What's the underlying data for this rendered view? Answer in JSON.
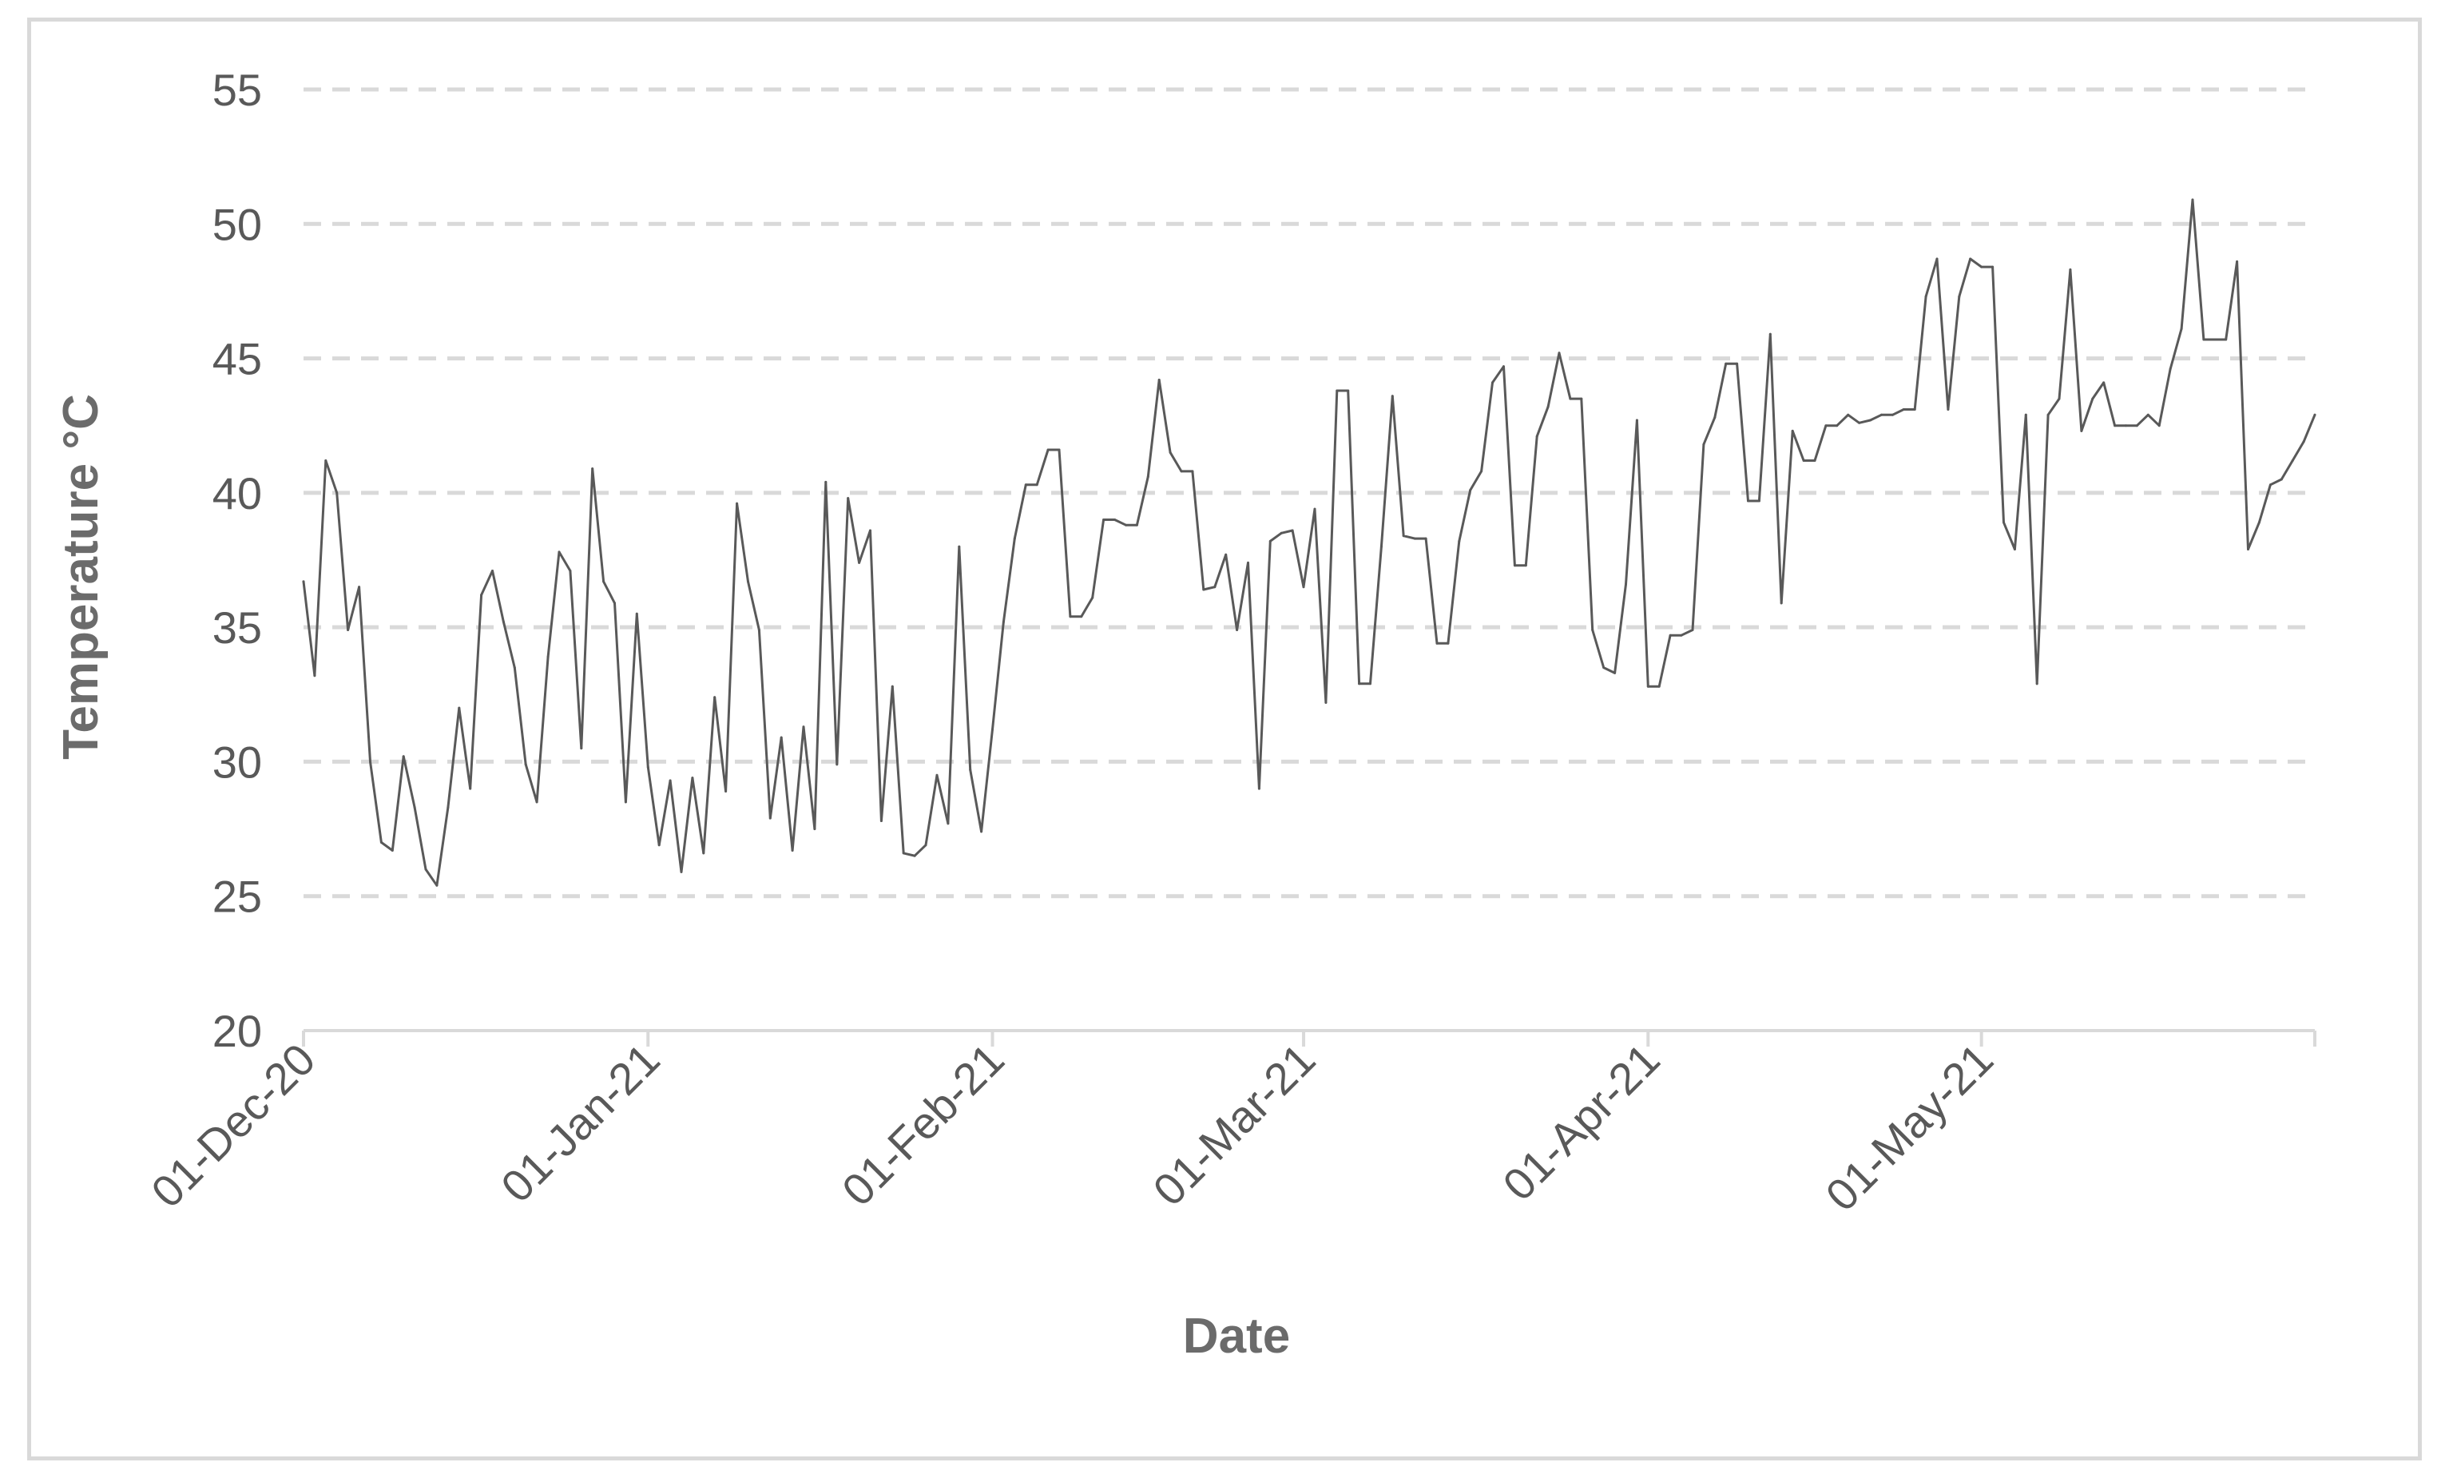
{
  "chart_data": {
    "type": "line",
    "xlabel": "Date",
    "ylabel": "Temperature °C",
    "ylim": [
      20,
      55
    ],
    "xlim": [
      "2020-12-01",
      "2021-05-31"
    ],
    "yticks": [
      20,
      25,
      30,
      35,
      40,
      45,
      50,
      55
    ],
    "xticks": [
      {
        "date": "2020-12-01",
        "label": "01-Dec-20"
      },
      {
        "date": "2021-01-01",
        "label": "01-Jan-21"
      },
      {
        "date": "2021-02-01",
        "label": "01-Feb-21"
      },
      {
        "date": "2021-03-01",
        "label": "01-Mar-21"
      },
      {
        "date": "2021-04-01",
        "label": "01-Apr-21"
      },
      {
        "date": "2021-05-01",
        "label": "01-May-21"
      }
    ],
    "grid": {
      "horizontal": true,
      "style": "dashed",
      "color": "#d9d9d9"
    },
    "legend": "none",
    "colors": {
      "line": "#595959",
      "axis": "#d9d9d9",
      "text": "#595959",
      "title": "#6b6b6b",
      "frame": "#d9d9d9"
    },
    "series": [
      {
        "x": [
          "2020-12-01",
          "2020-12-02",
          "2020-12-03",
          "2020-12-04",
          "2020-12-05",
          "2020-12-06",
          "2020-12-07",
          "2020-12-08",
          "2020-12-09",
          "2020-12-10",
          "2020-12-11",
          "2020-12-12",
          "2020-12-13",
          "2020-12-14",
          "2020-12-15",
          "2020-12-16",
          "2020-12-17",
          "2020-12-18",
          "2020-12-19",
          "2020-12-20",
          "2020-12-21",
          "2020-12-22",
          "2020-12-23",
          "2020-12-24",
          "2020-12-25",
          "2020-12-26",
          "2020-12-27",
          "2020-12-28",
          "2020-12-29",
          "2020-12-30",
          "2020-12-31",
          "2021-01-01",
          "2021-01-02",
          "2021-01-03",
          "2021-01-04",
          "2021-01-05",
          "2021-01-06",
          "2021-01-07",
          "2021-01-08",
          "2021-01-09",
          "2021-01-10",
          "2021-01-11",
          "2021-01-12",
          "2021-01-13",
          "2021-01-14",
          "2021-01-15",
          "2021-01-16",
          "2021-01-17",
          "2021-01-18",
          "2021-01-19",
          "2021-01-20",
          "2021-01-21",
          "2021-01-22",
          "2021-01-23",
          "2021-01-24",
          "2021-01-25",
          "2021-01-26",
          "2021-01-27",
          "2021-01-28",
          "2021-01-29",
          "2021-01-30",
          "2021-01-31",
          "2021-02-01",
          "2021-02-02",
          "2021-02-03",
          "2021-02-04",
          "2021-02-05",
          "2021-02-06",
          "2021-02-07",
          "2021-02-08",
          "2021-02-09",
          "2021-02-10",
          "2021-02-11",
          "2021-02-12",
          "2021-02-13",
          "2021-02-14",
          "2021-02-15",
          "2021-02-16",
          "2021-02-17",
          "2021-02-18",
          "2021-02-19",
          "2021-02-20",
          "2021-02-21",
          "2021-02-22",
          "2021-02-23",
          "2021-02-24",
          "2021-02-25",
          "2021-02-26",
          "2021-02-27",
          "2021-02-28",
          "2021-03-01",
          "2021-03-02",
          "2021-03-03",
          "2021-03-04",
          "2021-03-05",
          "2021-03-06",
          "2021-03-07",
          "2021-03-08",
          "2021-03-09",
          "2021-03-10",
          "2021-03-11",
          "2021-03-12",
          "2021-03-13",
          "2021-03-14",
          "2021-03-15",
          "2021-03-16",
          "2021-03-17",
          "2021-03-18",
          "2021-03-19",
          "2021-03-20",
          "2021-03-21",
          "2021-03-22",
          "2021-03-23",
          "2021-03-24",
          "2021-03-25",
          "2021-03-26",
          "2021-03-27",
          "2021-03-28",
          "2021-03-29",
          "2021-03-30",
          "2021-03-31",
          "2021-04-01",
          "2021-04-02",
          "2021-04-03",
          "2021-04-04",
          "2021-04-05",
          "2021-04-06",
          "2021-04-07",
          "2021-04-08",
          "2021-04-09",
          "2021-04-10",
          "2021-04-11",
          "2021-04-12",
          "2021-04-13",
          "2021-04-14",
          "2021-04-15",
          "2021-04-16",
          "2021-04-17",
          "2021-04-18",
          "2021-04-19",
          "2021-04-20",
          "2021-04-21",
          "2021-04-22",
          "2021-04-23",
          "2021-04-24",
          "2021-04-25",
          "2021-04-26",
          "2021-04-27",
          "2021-04-28",
          "2021-04-29",
          "2021-04-30",
          "2021-05-01",
          "2021-05-02",
          "2021-05-03",
          "2021-05-04",
          "2021-05-05",
          "2021-05-06",
          "2021-05-07",
          "2021-05-08",
          "2021-05-09",
          "2021-05-10",
          "2021-05-11",
          "2021-05-12",
          "2021-05-13",
          "2021-05-14",
          "2021-05-15",
          "2021-05-16",
          "2021-05-17",
          "2021-05-18",
          "2021-05-19",
          "2021-05-20",
          "2021-05-21",
          "2021-05-22",
          "2021-05-23",
          "2021-05-24",
          "2021-05-25",
          "2021-05-26",
          "2021-05-27",
          "2021-05-28",
          "2021-05-29",
          "2021-05-30",
          "2021-05-31"
        ],
        "values": [
          36.7,
          33.2,
          41.2,
          40.0,
          34.9,
          36.5,
          30.0,
          27.0,
          26.7,
          30.2,
          28.3,
          26.0,
          25.4,
          28.3,
          32.0,
          29.0,
          36.2,
          37.1,
          35.2,
          33.5,
          29.9,
          28.5,
          33.9,
          37.8,
          37.1,
          30.5,
          40.9,
          36.7,
          35.9,
          28.5,
          35.5,
          29.8,
          26.9,
          29.3,
          25.9,
          29.4,
          26.6,
          32.4,
          28.9,
          39.6,
          36.7,
          34.9,
          27.9,
          30.9,
          26.7,
          31.3,
          27.5,
          40.4,
          29.9,
          39.8,
          37.4,
          38.6,
          27.8,
          32.8,
          26.6,
          26.5,
          26.9,
          29.5,
          27.7,
          38.0,
          29.7,
          27.4,
          31.2,
          35.2,
          38.3,
          40.3,
          40.3,
          41.6,
          41.6,
          35.4,
          35.4,
          36.1,
          39.0,
          39.0,
          38.8,
          38.8,
          40.6,
          44.2,
          41.5,
          40.8,
          40.8,
          36.4,
          36.5,
          37.7,
          34.9,
          37.4,
          29.0,
          38.2,
          38.5,
          38.6,
          36.5,
          39.4,
          32.2,
          43.8,
          43.8,
          32.9,
          32.9,
          38.0,
          43.6,
          38.4,
          38.3,
          38.3,
          34.4,
          34.4,
          38.2,
          40.1,
          40.8,
          44.1,
          44.7,
          37.3,
          37.3,
          42.1,
          43.2,
          45.2,
          43.5,
          43.5,
          34.9,
          33.5,
          33.3,
          36.6,
          42.7,
          32.8,
          32.8,
          34.7,
          34.7,
          34.9,
          41.8,
          42.8,
          44.8,
          44.8,
          39.7,
          39.7,
          45.9,
          35.9,
          42.3,
          41.2,
          41.2,
          42.5,
          42.5,
          42.9,
          42.6,
          42.7,
          42.9,
          42.9,
          43.1,
          43.1,
          47.3,
          48.7,
          43.1,
          47.3,
          48.7,
          48.4,
          48.4,
          38.9,
          37.9,
          42.9,
          32.9,
          42.9,
          43.5,
          48.3,
          42.3,
          43.5,
          44.1,
          42.5,
          42.5,
          42.5,
          42.9,
          42.5,
          44.6,
          46.1,
          50.9,
          45.7,
          45.7,
          45.7,
          48.6,
          37.9,
          38.9,
          40.3,
          40.5,
          41.2,
          41.9,
          42.9
        ]
      }
    ]
  }
}
